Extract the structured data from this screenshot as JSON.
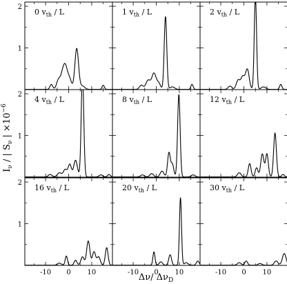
{
  "figure": {
    "ylabel": "I",
    "ylabel_sub1": "ν",
    "ylabel_mid": " / | S",
    "ylabel_sub2": "ν",
    "ylabel_end": " | ×10",
    "ylabel_sup": "−6",
    "xlabel": "Δν/ Δν",
    "xlabel_sub": "D"
  },
  "chart_data": {
    "type": "line",
    "layout": "3x3 grid of line plots with shared axes",
    "x_ticks": [
      -10,
      0,
      10
    ],
    "x_tick_labels": [
      "-10",
      "0",
      "10"
    ],
    "y_ticks": [
      1,
      2
    ],
    "y_tick_labels": [
      "1",
      "2"
    ],
    "xlim": [
      -19,
      19
    ],
    "ylim": [
      0,
      2.1
    ],
    "panels": [
      {
        "label_num": "0",
        "label_sub": "th",
        "label_rest": " / L",
        "peaks": [
          [
            -7.5,
            0.12,
            0.6
          ],
          [
            -4.5,
            0.2,
            0.8
          ],
          [
            -2.5,
            0.38,
            1.0
          ],
          [
            -1.2,
            0.4,
            0.9
          ],
          [
            0.5,
            0.22,
            0.8
          ],
          [
            3.5,
            0.98,
            0.8
          ],
          [
            6.0,
            0.08,
            1.0
          ],
          [
            15.0,
            0.1,
            0.5
          ]
        ]
      },
      {
        "label_num": "1",
        "label_sub": "th",
        "label_rest": " / L",
        "peaks": [
          [
            -6.5,
            0.1,
            0.8
          ],
          [
            -3.5,
            0.22,
            1.0
          ],
          [
            -1.0,
            0.38,
            0.9
          ],
          [
            1.0,
            0.15,
            0.8
          ],
          [
            4.0,
            1.75,
            0.55
          ],
          [
            7.0,
            0.06,
            1.0
          ],
          [
            15.5,
            0.12,
            0.5
          ]
        ]
      },
      {
        "label_num": "2",
        "label_sub": "th",
        "label_rest": " / L",
        "peaks": [
          [
            -6.0,
            0.08,
            0.8
          ],
          [
            -2.5,
            0.22,
            0.8
          ],
          [
            -0.5,
            0.3,
            0.8
          ],
          [
            1.5,
            0.48,
            0.8
          ],
          [
            5.0,
            2.25,
            0.5
          ],
          [
            8.5,
            0.06,
            1.0
          ],
          [
            16.0,
            0.12,
            0.5
          ]
        ]
      },
      {
        "label_num": "4",
        "label_sub": "th",
        "label_rest": " / L",
        "peaks": [
          [
            -8.0,
            0.06,
            0.8
          ],
          [
            -4.0,
            0.1,
            0.9
          ],
          [
            -1.5,
            0.18,
            0.8
          ],
          [
            0.5,
            0.3,
            0.7
          ],
          [
            3.0,
            0.4,
            0.8
          ],
          [
            6.0,
            2.5,
            0.55
          ],
          [
            14.0,
            0.05,
            0.8
          ],
          [
            17.5,
            0.06,
            0.6
          ]
        ]
      },
      {
        "label_num": "8",
        "label_sub": "th",
        "label_rest": " / L",
        "peaks": [
          [
            -6.0,
            0.05,
            0.8
          ],
          [
            -2.0,
            0.08,
            0.8
          ],
          [
            2.5,
            0.14,
            0.8
          ],
          [
            5.5,
            0.58,
            0.6
          ],
          [
            7.0,
            0.3,
            0.6
          ],
          [
            9.8,
            1.98,
            0.55
          ],
          [
            16.0,
            0.05,
            0.8
          ]
        ]
      },
      {
        "label_num": "12",
        "label_sub": "th",
        "label_rest": " / L",
        "peaks": [
          [
            -2.0,
            0.1,
            0.8
          ],
          [
            2.5,
            0.32,
            0.6
          ],
          [
            5.5,
            0.22,
            0.6
          ],
          [
            8.0,
            0.55,
            0.7
          ],
          [
            10.0,
            0.55,
            0.6
          ],
          [
            13.5,
            1.05,
            0.6
          ],
          [
            17.0,
            0.06,
            0.6
          ]
        ]
      },
      {
        "label_num": "16",
        "label_sub": "th",
        "label_rest": " / L",
        "peaks": [
          [
            -4.0,
            0.05,
            0.8
          ],
          [
            -1.0,
            0.22,
            0.5
          ],
          [
            3.0,
            0.12,
            0.6
          ],
          [
            6.0,
            0.2,
            0.7
          ],
          [
            8.5,
            0.58,
            0.7
          ],
          [
            11.0,
            0.32,
            0.7
          ],
          [
            13.0,
            0.2,
            0.7
          ],
          [
            16.5,
            0.42,
            0.6
          ]
        ]
      },
      {
        "label_num": "20",
        "label_sub": "th",
        "label_rest": " / L",
        "peaks": [
          [
            -1.0,
            0.32,
            0.45
          ],
          [
            2.0,
            0.08,
            0.7
          ],
          [
            6.0,
            0.25,
            0.6
          ],
          [
            10.5,
            1.62,
            0.45
          ],
          [
            13.0,
            0.06,
            0.8
          ],
          [
            18.0,
            0.1,
            0.6
          ]
        ]
      },
      {
        "label_num": "30",
        "label_sub": "th",
        "label_rest": " / L",
        "peaks": [
          [
            -2.0,
            0.06,
            0.8
          ],
          [
            1.0,
            0.1,
            0.6
          ],
          [
            7.0,
            0.04,
            0.8
          ],
          [
            14.0,
            0.1,
            0.8
          ],
          [
            17.5,
            0.28,
            0.8
          ]
        ]
      }
    ]
  }
}
